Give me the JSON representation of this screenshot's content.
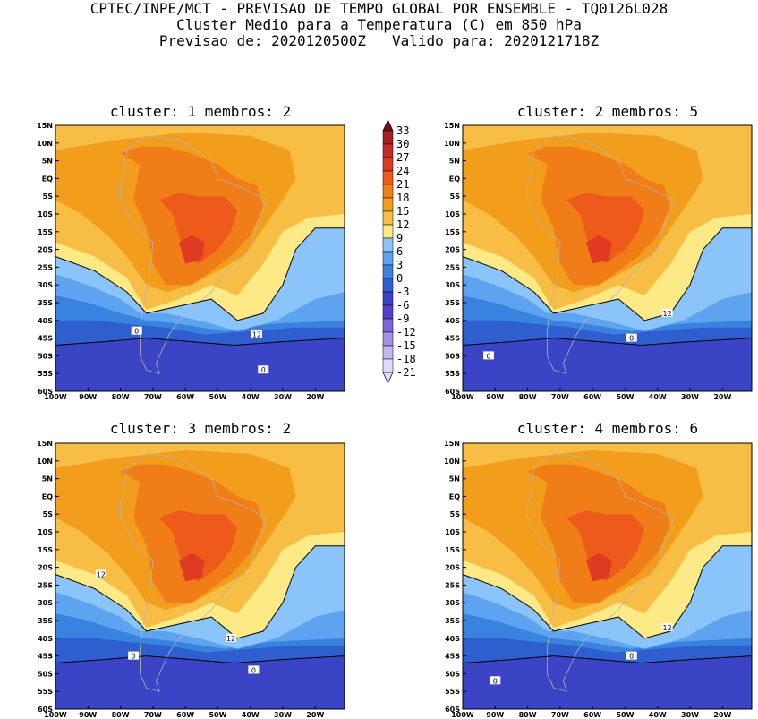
{
  "header": {
    "line1": "CPTEC/INPE/MCT - PREVISAO DE TEMPO GLOBAL POR ENSEMBLE - TQ0126L028",
    "line2": "Cluster Medio para a Temperatura (C) em 850 hPa",
    "line3": "Previsao de: 2020120500Z   Valido para: 2020121718Z"
  },
  "colors": {
    "levels": [
      "#e2d8fa",
      "#c5b6f0",
      "#a38fe6",
      "#7c65d9",
      "#5440cf",
      "#3a44c4",
      "#2f5fcf",
      "#3a82e0",
      "#5ea3ef",
      "#8bc4fa",
      "#fde985",
      "#f7bd45",
      "#f29e1c",
      "#f07d17",
      "#ed5a1b",
      "#e03a22",
      "#c52a2a",
      "#a82024",
      "#7c1115"
    ]
  },
  "chart_data": {
    "type": "contour-map",
    "variable": "Temperatura (C) em 850 hPa",
    "region": {
      "lon": [
        -100,
        -11
      ],
      "lat": [
        -60,
        15
      ]
    },
    "x_ticks": [
      "100W",
      "90W",
      "80W",
      "70W",
      "60W",
      "50W",
      "40W",
      "30W",
      "20W"
    ],
    "y_ticks": [
      "15N",
      "10N",
      "5N",
      "EQ",
      "5S",
      "10S",
      "15S",
      "20S",
      "25S",
      "30S",
      "35S",
      "40S",
      "45S",
      "50S",
      "55S",
      "60S"
    ],
    "colorbar": {
      "levels": [
        33,
        30,
        27,
        24,
        21,
        18,
        15,
        12,
        9,
        6,
        3,
        0,
        -3,
        -6,
        -9,
        -12,
        -15,
        -18,
        -21
      ]
    },
    "panels": [
      {
        "cluster": "1",
        "membros": "2",
        "title": "cluster: 1  membros: 2",
        "labels": [
          {
            "text": "0",
            "lon": -75,
            "lat": -43
          },
          {
            "text": "12",
            "lon": -38,
            "lat": -44
          },
          {
            "text": "0",
            "lon": -36,
            "lat": -54
          }
        ]
      },
      {
        "cluster": "2",
        "membros": "5",
        "title": "cluster: 2  membros: 5",
        "labels": [
          {
            "text": "12",
            "lon": -37,
            "lat": -38
          },
          {
            "text": "0",
            "lon": -92,
            "lat": -50
          },
          {
            "text": "0",
            "lon": -48,
            "lat": -45
          }
        ]
      },
      {
        "cluster": "3",
        "membros": "2",
        "title": "cluster: 3  membros: 2",
        "labels": [
          {
            "text": "12",
            "lon": -86,
            "lat": -22
          },
          {
            "text": "12",
            "lon": -46,
            "lat": -40
          },
          {
            "text": "0",
            "lon": -76,
            "lat": -45
          },
          {
            "text": "0",
            "lon": -39,
            "lat": -49
          }
        ]
      },
      {
        "cluster": "4",
        "membros": "6",
        "title": "cluster: 4  membros: 6",
        "labels": [
          {
            "text": "12",
            "lon": -37,
            "lat": -37
          },
          {
            "text": "0",
            "lon": -48,
            "lat": -45
          },
          {
            "text": "0",
            "lon": -90,
            "lat": -52
          }
        ]
      }
    ]
  }
}
